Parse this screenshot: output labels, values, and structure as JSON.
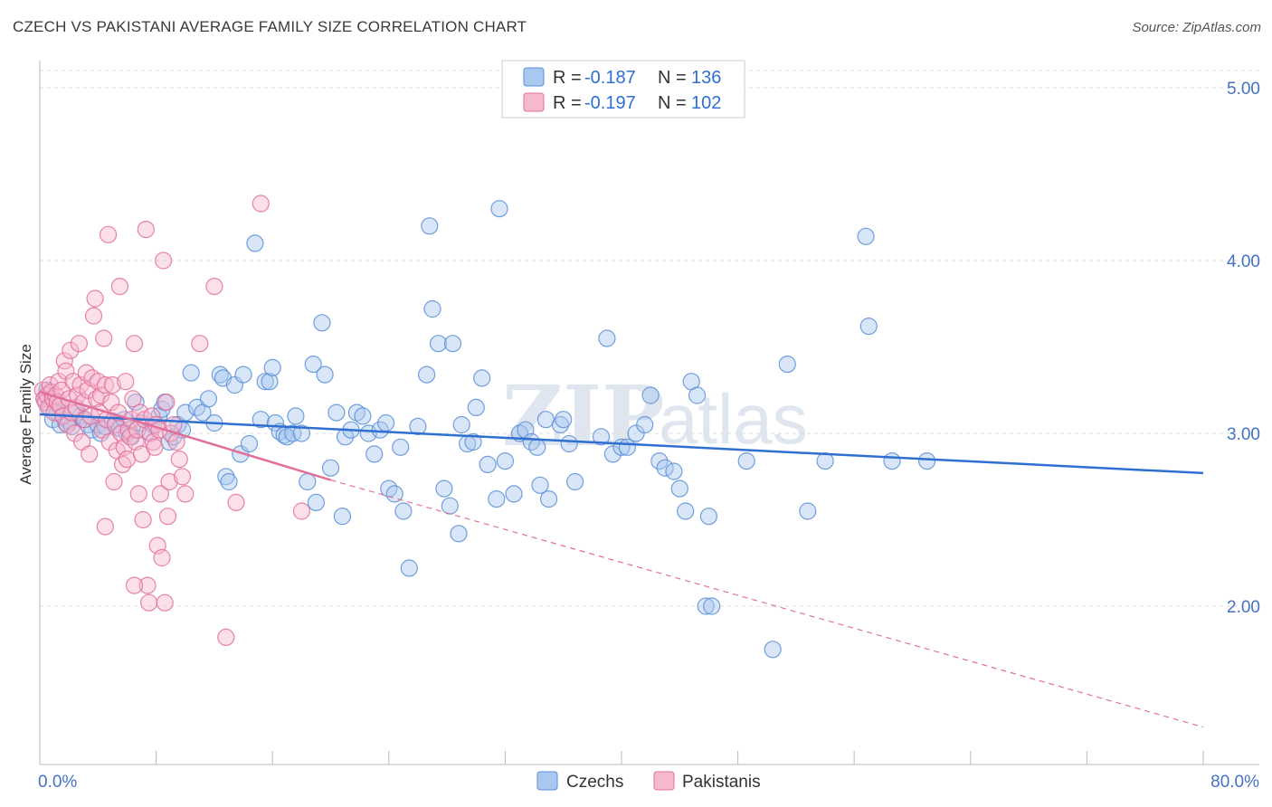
{
  "title": "CZECH VS PAKISTANI AVERAGE FAMILY SIZE CORRELATION CHART",
  "source": "Source: ZipAtlas.com",
  "watermark": {
    "part1": "ZIP",
    "part2": "atlas"
  },
  "legend": {
    "rows": [
      {
        "r_label": "R =",
        "r_value": "-0.187",
        "n_label": "N =",
        "n_value": "136",
        "color": "#a9c8f0",
        "stroke": "#5b8fd6"
      },
      {
        "r_label": "R =",
        "r_value": "-0.197",
        "n_label": "N =",
        "n_value": "102",
        "color": "#f7b9cf",
        "stroke": "#e0709a"
      }
    ]
  },
  "chart_data": {
    "type": "scatter",
    "title": "CZECH VS PAKISTANI AVERAGE FAMILY SIZE CORRELATION CHART",
    "xlabel": "",
    "ylabel": "Average Family Size",
    "xlim": [
      0,
      80
    ],
    "ylim": [
      1.0,
      5.2
    ],
    "x_tick_labels": {
      "min": "0.0%",
      "max": "80.0%"
    },
    "y_ticks": [
      {
        "value": 2.0,
        "label": "2.00"
      },
      {
        "value": 3.0,
        "label": "3.00"
      },
      {
        "value": 4.0,
        "label": "4.00"
      },
      {
        "value": 5.0,
        "label": "5.00"
      }
    ],
    "series": [
      {
        "name": "Czechs",
        "color": "#a9c8f0",
        "stroke": "#5b8fd6",
        "trend": {
          "x": [
            0,
            80
          ],
          "y": [
            3.11,
            2.77
          ],
          "color": "#2f6fd0",
          "dashed_extension": false
        },
        "points": [
          [
            0.3,
            3.2
          ],
          [
            0.5,
            3.25
          ],
          [
            0.7,
            3.15
          ],
          [
            0.9,
            3.08
          ],
          [
            1.0,
            3.18
          ],
          [
            1.2,
            3.12
          ],
          [
            1.4,
            3.05
          ],
          [
            1.6,
            3.1
          ],
          [
            1.8,
            3.06
          ],
          [
            2.0,
            3.07
          ],
          [
            2.2,
            3.04
          ],
          [
            2.5,
            3.12
          ],
          [
            2.8,
            3.1
          ],
          [
            3.0,
            3.08
          ],
          [
            3.3,
            3.05
          ],
          [
            3.6,
            3.02
          ],
          [
            4.0,
            3.05
          ],
          [
            4.2,
            3.0
          ],
          [
            4.5,
            3.04
          ],
          [
            5.0,
            3.07
          ],
          [
            5.2,
            3.05
          ],
          [
            5.5,
            3.03
          ],
          [
            5.8,
            3.08
          ],
          [
            6.0,
            3.0
          ],
          [
            6.3,
            2.98
          ],
          [
            6.6,
            3.18
          ],
          [
            7.0,
            3.06
          ],
          [
            7.4,
            3.01
          ],
          [
            7.8,
            3.05
          ],
          [
            8.2,
            3.1
          ],
          [
            8.4,
            3.14
          ],
          [
            8.6,
            3.18
          ],
          [
            8.9,
            2.95
          ],
          [
            9.2,
            2.98
          ],
          [
            9.5,
            3.05
          ],
          [
            9.8,
            3.02
          ],
          [
            10.0,
            3.12
          ],
          [
            10.4,
            3.35
          ],
          [
            10.8,
            3.15
          ],
          [
            11.2,
            3.12
          ],
          [
            11.6,
            3.2
          ],
          [
            12.0,
            3.06
          ],
          [
            12.4,
            3.34
          ],
          [
            12.6,
            3.32
          ],
          [
            12.8,
            2.75
          ],
          [
            13.0,
            2.72
          ],
          [
            13.4,
            3.28
          ],
          [
            13.8,
            2.88
          ],
          [
            14.0,
            3.34
          ],
          [
            14.4,
            2.94
          ],
          [
            14.8,
            4.1
          ],
          [
            15.2,
            3.08
          ],
          [
            15.5,
            3.3
          ],
          [
            15.8,
            3.3
          ],
          [
            16.0,
            3.38
          ],
          [
            16.2,
            3.06
          ],
          [
            16.5,
            3.01
          ],
          [
            16.8,
            2.99
          ],
          [
            17.0,
            2.98
          ],
          [
            17.4,
            3.0
          ],
          [
            17.6,
            3.1
          ],
          [
            18.0,
            3.0
          ],
          [
            18.4,
            2.72
          ],
          [
            18.8,
            3.4
          ],
          [
            19.0,
            2.6
          ],
          [
            19.4,
            3.64
          ],
          [
            19.6,
            3.34
          ],
          [
            20.0,
            2.8
          ],
          [
            20.4,
            3.12
          ],
          [
            20.8,
            2.52
          ],
          [
            21.0,
            2.98
          ],
          [
            21.4,
            3.02
          ],
          [
            21.8,
            3.12
          ],
          [
            22.2,
            3.1
          ],
          [
            22.6,
            3.0
          ],
          [
            23.0,
            2.88
          ],
          [
            23.4,
            3.02
          ],
          [
            23.8,
            3.06
          ],
          [
            24.0,
            2.68
          ],
          [
            24.4,
            2.65
          ],
          [
            24.8,
            2.92
          ],
          [
            25.0,
            2.55
          ],
          [
            25.4,
            2.22
          ],
          [
            26.0,
            3.04
          ],
          [
            26.6,
            3.34
          ],
          [
            26.8,
            4.2
          ],
          [
            27.0,
            3.72
          ],
          [
            27.4,
            3.52
          ],
          [
            27.8,
            2.68
          ],
          [
            28.2,
            2.58
          ],
          [
            28.4,
            3.52
          ],
          [
            28.8,
            2.42
          ],
          [
            29.0,
            3.05
          ],
          [
            29.4,
            2.94
          ],
          [
            29.8,
            2.95
          ],
          [
            30.0,
            3.15
          ],
          [
            30.4,
            3.32
          ],
          [
            30.8,
            2.82
          ],
          [
            31.4,
            2.62
          ],
          [
            31.6,
            4.3
          ],
          [
            32.0,
            2.84
          ],
          [
            32.6,
            2.65
          ],
          [
            33.0,
            3.0
          ],
          [
            33.4,
            3.02
          ],
          [
            33.8,
            2.95
          ],
          [
            34.2,
            2.92
          ],
          [
            34.4,
            2.7
          ],
          [
            34.8,
            3.08
          ],
          [
            35.0,
            2.62
          ],
          [
            35.8,
            3.05
          ],
          [
            36.0,
            3.08
          ],
          [
            36.4,
            2.94
          ],
          [
            36.8,
            2.72
          ],
          [
            38.6,
            2.98
          ],
          [
            39.0,
            3.55
          ],
          [
            39.4,
            2.88
          ],
          [
            40.0,
            2.92
          ],
          [
            40.4,
            2.92
          ],
          [
            41.0,
            3.0
          ],
          [
            41.6,
            3.05
          ],
          [
            42.0,
            3.22
          ],
          [
            42.6,
            2.84
          ],
          [
            43.0,
            2.8
          ],
          [
            43.6,
            2.78
          ],
          [
            44.0,
            2.68
          ],
          [
            44.4,
            2.55
          ],
          [
            44.8,
            3.3
          ],
          [
            45.2,
            3.22
          ],
          [
            45.8,
            2.0
          ],
          [
            46.0,
            2.52
          ],
          [
            46.2,
            2.0
          ],
          [
            48.6,
            2.84
          ],
          [
            50.4,
            1.75
          ],
          [
            51.4,
            3.4
          ],
          [
            52.8,
            2.55
          ],
          [
            54.0,
            2.84
          ],
          [
            56.8,
            4.14
          ],
          [
            57.0,
            3.62
          ],
          [
            58.6,
            2.84
          ],
          [
            61.0,
            2.84
          ]
        ]
      },
      {
        "name": "Pakistanis",
        "color": "#f7b9cf",
        "stroke": "#e0709a",
        "trend": {
          "x": [
            0,
            20
          ],
          "y": [
            3.24,
            2.73
          ],
          "color": "#e0709a",
          "extension_to": [
            80,
            1.3
          ]
        },
        "points": [
          [
            0.2,
            3.25
          ],
          [
            0.3,
            3.2
          ],
          [
            0.4,
            3.18
          ],
          [
            0.5,
            3.22
          ],
          [
            0.6,
            3.15
          ],
          [
            0.7,
            3.28
          ],
          [
            0.8,
            3.24
          ],
          [
            0.9,
            3.2
          ],
          [
            1.0,
            3.12
          ],
          [
            1.1,
            3.22
          ],
          [
            1.2,
            3.18
          ],
          [
            1.3,
            3.3
          ],
          [
            1.4,
            3.16
          ],
          [
            1.5,
            3.25
          ],
          [
            1.6,
            3.1
          ],
          [
            1.7,
            3.42
          ],
          [
            1.8,
            3.36
          ],
          [
            1.9,
            3.05
          ],
          [
            2.0,
            3.2
          ],
          [
            2.1,
            3.48
          ],
          [
            2.2,
            3.12
          ],
          [
            2.3,
            3.3
          ],
          [
            2.4,
            3.0
          ],
          [
            2.5,
            3.15
          ],
          [
            2.6,
            3.22
          ],
          [
            2.7,
            3.52
          ],
          [
            2.8,
            3.28
          ],
          [
            2.9,
            2.95
          ],
          [
            3.0,
            3.18
          ],
          [
            3.1,
            3.08
          ],
          [
            3.2,
            3.35
          ],
          [
            3.3,
            3.25
          ],
          [
            3.4,
            2.88
          ],
          [
            3.5,
            3.1
          ],
          [
            3.6,
            3.32
          ],
          [
            3.7,
            3.68
          ],
          [
            3.8,
            3.78
          ],
          [
            3.9,
            3.2
          ],
          [
            4.0,
            3.3
          ],
          [
            4.1,
            3.12
          ],
          [
            4.2,
            3.22
          ],
          [
            4.3,
            3.02
          ],
          [
            4.4,
            3.55
          ],
          [
            4.5,
            3.28
          ],
          [
            4.6,
            3.08
          ],
          [
            4.7,
            4.15
          ],
          [
            4.8,
            2.95
          ],
          [
            4.9,
            3.18
          ],
          [
            5.0,
            3.28
          ],
          [
            5.1,
            2.72
          ],
          [
            5.2,
            3.05
          ],
          [
            5.3,
            2.9
          ],
          [
            5.4,
            3.12
          ],
          [
            5.5,
            3.85
          ],
          [
            5.6,
            3.0
          ],
          [
            5.7,
            2.82
          ],
          [
            5.8,
            2.92
          ],
          [
            5.9,
            3.3
          ],
          [
            6.0,
            2.85
          ],
          [
            6.1,
            3.02
          ],
          [
            6.2,
            2.98
          ],
          [
            6.3,
            3.08
          ],
          [
            6.4,
            3.2
          ],
          [
            6.5,
            3.52
          ],
          [
            6.6,
            2.95
          ],
          [
            6.7,
            3.02
          ],
          [
            6.8,
            2.65
          ],
          [
            6.9,
            3.12
          ],
          [
            7.0,
            2.88
          ],
          [
            7.1,
            2.5
          ],
          [
            7.2,
            3.08
          ],
          [
            7.3,
            4.18
          ],
          [
            7.4,
            2.12
          ],
          [
            7.5,
            2.02
          ],
          [
            7.6,
            3.0
          ],
          [
            7.7,
            3.1
          ],
          [
            7.8,
            2.95
          ],
          [
            7.9,
            2.92
          ],
          [
            8.0,
            3.05
          ],
          [
            8.1,
            2.35
          ],
          [
            8.2,
            3.02
          ],
          [
            8.3,
            2.65
          ],
          [
            8.4,
            2.28
          ],
          [
            8.5,
            4.0
          ],
          [
            8.6,
            2.02
          ],
          [
            8.7,
            3.18
          ],
          [
            8.8,
            2.52
          ],
          [
            8.9,
            2.72
          ],
          [
            9.0,
            3.0
          ],
          [
            9.2,
            3.05
          ],
          [
            9.4,
            2.95
          ],
          [
            9.6,
            2.85
          ],
          [
            9.8,
            2.75
          ],
          [
            10.0,
            2.65
          ],
          [
            11.0,
            3.52
          ],
          [
            12.0,
            3.85
          ],
          [
            12.8,
            1.82
          ],
          [
            13.5,
            2.6
          ],
          [
            15.2,
            4.33
          ],
          [
            18.0,
            2.55
          ],
          [
            4.5,
            2.46
          ],
          [
            6.5,
            2.12
          ]
        ]
      }
    ]
  },
  "bottom_legend": [
    {
      "label": "Czechs",
      "color": "#a9c8f0",
      "stroke": "#5b8fd6"
    },
    {
      "label": "Pakistanis",
      "color": "#f7b9cf",
      "stroke": "#e0709a"
    }
  ]
}
